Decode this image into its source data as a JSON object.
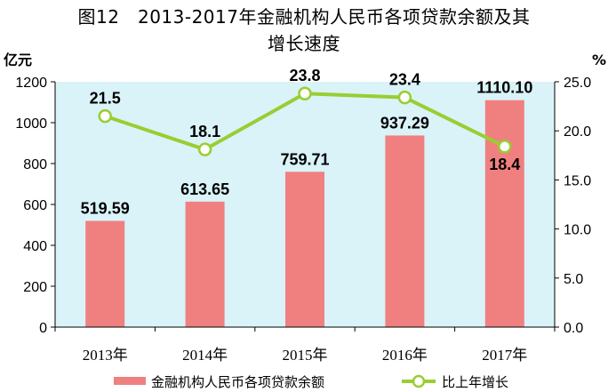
{
  "title_line1": "图12　2013-2017年金融机构人民币各项贷款余额及其",
  "title_line2": "增长速度",
  "colors": {
    "bar": "#f08080",
    "line": "#9acd32",
    "plot_bg": "#d9f3f8"
  },
  "chart_data": {
    "type": "bar",
    "title": "图12　2013-2017年金融机构人民币各项贷款余额及其增长速度",
    "categories": [
      "2013年",
      "2014年",
      "2015年",
      "2016年",
      "2017年"
    ],
    "y_left": {
      "unit": "亿元",
      "lim": [
        0,
        1200
      ],
      "ticks": [
        "0",
        "200",
        "400",
        "600",
        "800",
        "1000",
        "1200"
      ]
    },
    "y_right": {
      "unit": "%",
      "lim": [
        0,
        25
      ],
      "ticks": [
        "0.0",
        "5.0",
        "10.0",
        "15.0",
        "20.0",
        "25.0"
      ]
    },
    "series": [
      {
        "name": "金融机构人民币各项贷款余额",
        "type": "bar",
        "axis": "left",
        "values": [
          519.59,
          613.65,
          759.71,
          937.29,
          1110.1
        ],
        "labels": [
          "519.59",
          "613.65",
          "759.71",
          "937.29",
          "1110.10"
        ]
      },
      {
        "name": "比上年增长",
        "type": "line",
        "axis": "right",
        "values": [
          21.5,
          18.1,
          23.8,
          23.4,
          18.4
        ],
        "labels": [
          "21.5",
          "18.1",
          "23.8",
          "23.4",
          "18.4"
        ]
      }
    ],
    "legend": "bottom"
  }
}
